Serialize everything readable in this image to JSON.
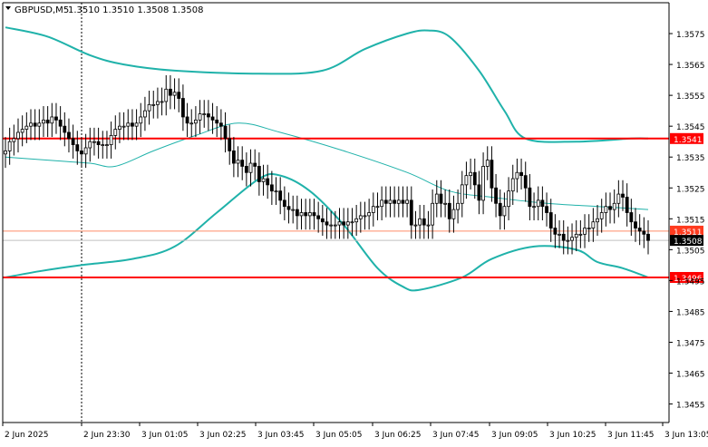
{
  "header": {
    "symbol_label": "GBPUSD,M5",
    "ohlc": "1.3510 1.3510 1.3508 1.3508"
  },
  "colors": {
    "background": "#ffffff",
    "axis": "#000000",
    "bollinger": "#20b2aa",
    "level_line": "#ff0000",
    "bid_line": "#ff8c69",
    "ask_line": "#c0c0c0",
    "candle": "#000000",
    "grid": "#c0c0c0"
  },
  "chart_data": {
    "type": "candlestick",
    "symbol": "GBPUSD",
    "timeframe": "M5",
    "ylim": [
      1.3449,
      1.3585
    ],
    "y_ticks": [
      "1.3575",
      "1.3565",
      "1.3555",
      "1.3545",
      "1.3535",
      "1.3525",
      "1.3515",
      "1.3505",
      "1.3495",
      "1.3485",
      "1.3475",
      "1.3465",
      "1.3455"
    ],
    "x_ticks": [
      "2 Jun 2025",
      "2 Jun 23:30",
      "3 Jun 01:05",
      "3 Jun 02:25",
      "3 Jun 03:45",
      "3 Jun 05:05",
      "3 Jun 06:25",
      "3 Jun 07:45",
      "3 Jun 09:05",
      "3 Jun 10:25",
      "3 Jun 11:45",
      "3 Jun 13:05"
    ],
    "grid": "vertical dotted line at 2 Jun 23:30 only",
    "horizontal_levels": [
      {
        "label": "1.3541",
        "value": 1.3541,
        "style": "red thick"
      },
      {
        "label": "1.3496",
        "value": 1.3496,
        "style": "red thick"
      },
      {
        "label": "1.3511",
        "value": 1.3511,
        "style": "bid line"
      },
      {
        "label": "1.3508",
        "value": 1.3508,
        "style": "current price"
      }
    ],
    "close_series": [
      1.3537,
      1.354,
      1.3541,
      1.3543,
      1.3544,
      1.3545,
      1.3546,
      1.3545,
      1.3546,
      1.3547,
      1.3546,
      1.3548,
      1.3547,
      1.3545,
      1.3543,
      1.3541,
      1.3539,
      1.3537,
      1.3536,
      1.3538,
      1.354,
      1.354,
      1.3539,
      1.3539,
      1.3539,
      1.3542,
      1.3544,
      1.3545,
      1.3545,
      1.3546,
      1.3545,
      1.3546,
      1.3548,
      1.355,
      1.3552,
      1.3552,
      1.3553,
      1.3553,
      1.3557,
      1.3555,
      1.3556,
      1.3554,
      1.3548,
      1.3546,
      1.3546,
      1.3547,
      1.3549,
      1.3549,
      1.3548,
      1.3547,
      1.3546,
      1.3545,
      1.3541,
      1.3537,
      1.3533,
      1.3534,
      1.3532,
      1.353,
      1.3533,
      1.3532,
      1.3527,
      1.3528,
      1.3526,
      1.3524,
      1.3524,
      1.3521,
      1.3519,
      1.3518,
      1.3518,
      1.3516,
      1.3517,
      1.3516,
      1.3517,
      1.3516,
      1.3515,
      1.3514,
      1.3513,
      1.3513,
      1.3513,
      1.3514,
      1.3513,
      1.3514,
      1.3514,
      1.3515,
      1.3516,
      1.3516,
      1.3517,
      1.3519,
      1.3519,
      1.3521,
      1.352,
      1.3521,
      1.352,
      1.3521,
      1.352,
      1.3521,
      1.3513,
      1.3513,
      1.3515,
      1.3513,
      1.3513,
      1.352,
      1.3523,
      1.352,
      1.352,
      1.3515,
      1.3518,
      1.352,
      1.3526,
      1.3529,
      1.353,
      1.3526,
      1.3521,
      1.3532,
      1.3534,
      1.3525,
      1.352,
      1.3516,
      1.3519,
      1.3524,
      1.3528,
      1.353,
      1.3529,
      1.3525,
      1.3519,
      1.3519,
      1.3521,
      1.3519,
      1.3517,
      1.3512,
      1.351,
      1.351,
      1.3508,
      1.3508,
      1.3509,
      1.351,
      1.351,
      1.3512,
      1.3512,
      1.3514,
      1.3515,
      1.3517,
      1.3519,
      1.3518,
      1.352,
      1.3523,
      1.3522,
      1.3517,
      1.3514,
      1.3512,
      1.3511,
      1.351,
      1.3508
    ],
    "bollinger_upper": [
      [
        0,
        1.3577
      ],
      [
        10,
        1.3574
      ],
      [
        20,
        1.3568
      ],
      [
        28,
        1.3565
      ],
      [
        40,
        1.3563
      ],
      [
        60,
        1.3562
      ],
      [
        75,
        1.3563
      ],
      [
        85,
        1.357
      ],
      [
        95,
        1.3575
      ],
      [
        100,
        1.3576
      ],
      [
        105,
        1.3574
      ],
      [
        112,
        1.3563
      ],
      [
        118,
        1.355
      ],
      [
        123,
        1.3541
      ],
      [
        135,
        1.354
      ],
      [
        148,
        1.3541
      ],
      [
        152,
        1.3541
      ]
    ],
    "bollinger_middle": [
      [
        0,
        1.3535
      ],
      [
        10,
        1.3534
      ],
      [
        20,
        1.3533
      ],
      [
        26,
        1.3532
      ],
      [
        35,
        1.3537
      ],
      [
        45,
        1.3542
      ],
      [
        55,
        1.3546
      ],
      [
        65,
        1.3543
      ],
      [
        80,
        1.3537
      ],
      [
        95,
        1.353
      ],
      [
        105,
        1.3524
      ],
      [
        115,
        1.3522
      ],
      [
        128,
        1.352
      ],
      [
        140,
        1.3519
      ],
      [
        152,
        1.3518
      ]
    ],
    "bollinger_lower": [
      [
        0,
        1.3496
      ],
      [
        8,
        1.3498
      ],
      [
        18,
        1.35
      ],
      [
        30,
        1.3502
      ],
      [
        40,
        1.3506
      ],
      [
        50,
        1.3517
      ],
      [
        60,
        1.3528
      ],
      [
        65,
        1.3529
      ],
      [
        72,
        1.3524
      ],
      [
        80,
        1.3513
      ],
      [
        88,
        1.3499
      ],
      [
        94,
        1.3493
      ],
      [
        98,
        1.3492
      ],
      [
        108,
        1.3496
      ],
      [
        115,
        1.3502
      ],
      [
        125,
        1.3506
      ],
      [
        135,
        1.3505
      ],
      [
        140,
        1.3501
      ],
      [
        146,
        1.3499
      ],
      [
        152,
        1.3496
      ]
    ]
  }
}
